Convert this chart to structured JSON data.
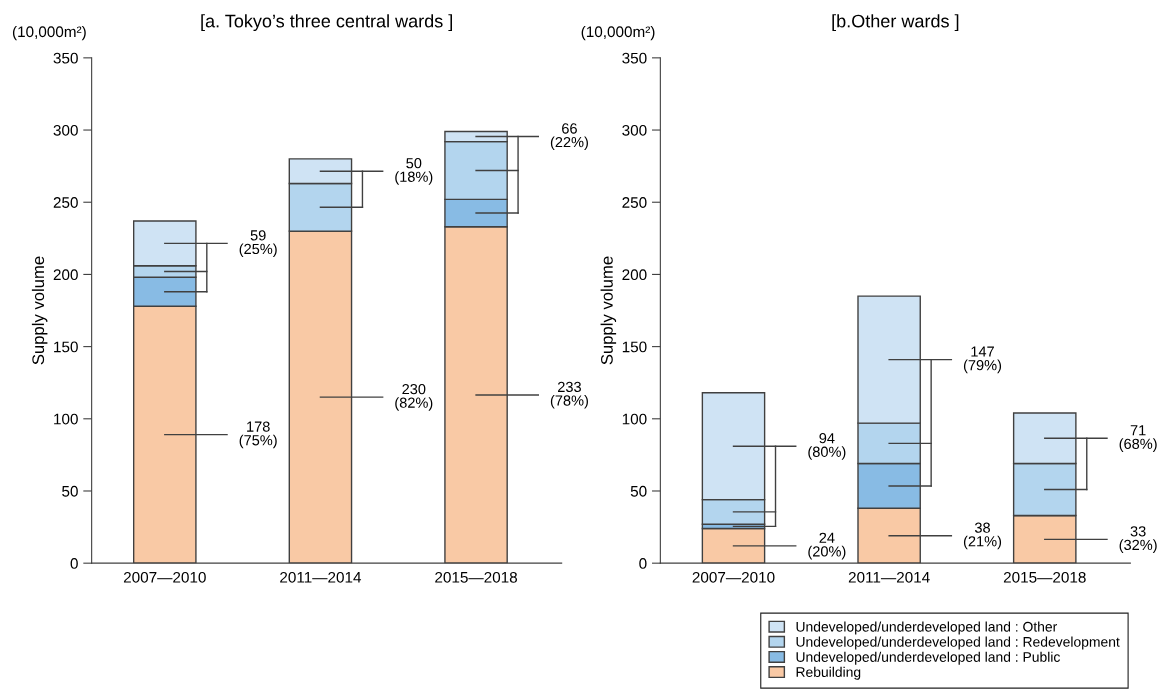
{
  "chart_data": [
    {
      "type": "bar",
      "title": "[a. Tokyo’s three central wards ]",
      "ylabel": "Supply volume",
      "categories": [
        "2007—2010",
        "2011—2014",
        "2015—2018"
      ],
      "stacked": true,
      "ylim": [
        0,
        350
      ],
      "yticks": [
        0,
        50,
        100,
        150,
        200,
        250,
        300,
        350
      ],
      "grid": false,
      "legend": false,
      "series": [
        {
          "color": "#f9c9a5",
          "values": [
            178,
            230,
            233
          ]
        },
        {
          "color": "#88bbe4",
          "values": [
            20,
            0,
            19
          ]
        },
        {
          "color": "#b3d5ee",
          "values": [
            8,
            33,
            40
          ]
        },
        {
          "color": "#cfe3f4",
          "values": [
            31,
            17,
            7
          ]
        }
      ],
      "annotations": [
        "(10,000m²)",
        "178\n(75%)",
        "59\n(25%)",
        "230\n(82%)",
        "50\n(18%)",
        "233\n(78%)",
        "66\n(22%)"
      ]
    },
    {
      "type": "bar",
      "title": "[b.Other wards ]",
      "ylabel": "Supply volume",
      "categories": [
        "2007—2010",
        "2011—2014",
        "2015—2018"
      ],
      "stacked": true,
      "ylim": [
        0,
        350
      ],
      "yticks": [
        0,
        50,
        100,
        150,
        200,
        250,
        300,
        350
      ],
      "grid": false,
      "legend": "bottom",
      "series": [
        {
          "name": "Rebuilding",
          "color": "#f9c9a5",
          "values": [
            24,
            38,
            33
          ]
        },
        {
          "name": "Undeveloped/underdeveloped land : Public",
          "color": "#88bbe4",
          "values": [
            3,
            31,
            0
          ]
        },
        {
          "name": "Undeveloped/underdeveloped land : Redevelopment",
          "color": "#b3d5ee",
          "values": [
            17,
            28,
            36
          ]
        },
        {
          "name": "Undeveloped/underdeveloped land : Other",
          "color": "#cfe3f4",
          "values": [
            74,
            88,
            35
          ]
        }
      ],
      "annotations": [
        "(10,000m²)",
        "24\n(20%)",
        "94\n(80%)",
        "38\n(21%)",
        "147\n(79%)",
        "33\n(32%)",
        "71\n(68%)"
      ]
    }
  ]
}
